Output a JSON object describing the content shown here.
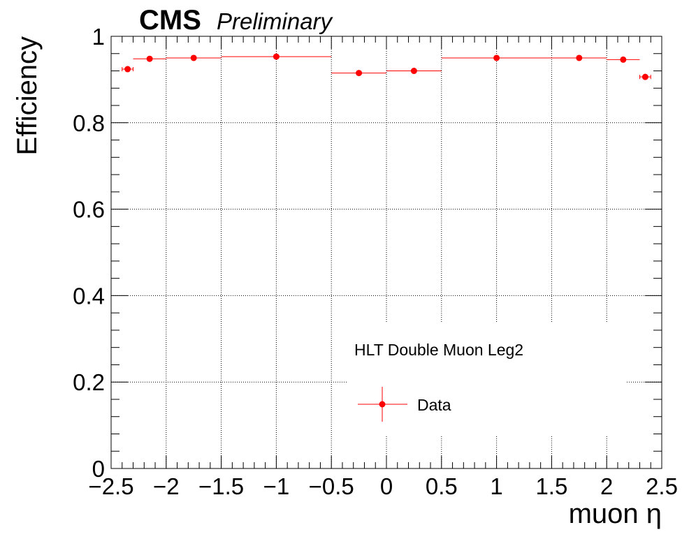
{
  "header": {
    "experiment": "CMS",
    "status": "Preliminary"
  },
  "chart_data": {
    "type": "scatter",
    "xlabel": "muon η",
    "ylabel": "Efficiency",
    "xlim": [
      -2.5,
      2.5
    ],
    "ylim": [
      0,
      1
    ],
    "x_ticks": [
      -2.5,
      -2,
      -1.5,
      -1,
      -0.5,
      0,
      0.5,
      1,
      1.5,
      2,
      2.5
    ],
    "x_tick_labels": [
      "−2.5",
      "−2",
      "−1.5",
      "−1",
      "−0.5",
      "0",
      "0.5",
      "1",
      "1.5",
      "2",
      "2.5"
    ],
    "y_ticks": [
      0,
      0.2,
      0.4,
      0.6,
      0.8,
      1
    ],
    "y_tick_labels": [
      "0",
      "0.2",
      "0.4",
      "0.6",
      "0.8",
      "1"
    ],
    "grid": true,
    "annotation": "HLT Double Muon Leg2",
    "legend": {
      "placement": "bottom-center",
      "entries": [
        "Data"
      ]
    },
    "series": [
      {
        "name": "Data",
        "color": "#ff0000",
        "points": [
          {
            "x": -2.35,
            "xlow": -2.4,
            "xhigh": -2.3,
            "y": 0.924
          },
          {
            "x": -2.15,
            "xlow": -2.3,
            "xhigh": -2.0,
            "y": 0.948
          },
          {
            "x": -1.75,
            "xlow": -2.0,
            "xhigh": -1.5,
            "y": 0.95
          },
          {
            "x": -1.0,
            "xlow": -1.5,
            "xhigh": -0.5,
            "y": 0.953
          },
          {
            "x": -0.25,
            "xlow": -0.5,
            "xhigh": 0.0,
            "y": 0.915
          },
          {
            "x": 0.25,
            "xlow": 0.0,
            "xhigh": 0.5,
            "y": 0.92
          },
          {
            "x": 1.0,
            "xlow": 0.5,
            "xhigh": 1.5,
            "y": 0.95
          },
          {
            "x": 1.75,
            "xlow": 1.5,
            "xhigh": 2.0,
            "y": 0.95
          },
          {
            "x": 2.15,
            "xlow": 2.0,
            "xhigh": 2.3,
            "y": 0.946
          },
          {
            "x": 2.35,
            "xlow": 2.3,
            "xhigh": 2.4,
            "y": 0.906
          }
        ]
      }
    ]
  }
}
